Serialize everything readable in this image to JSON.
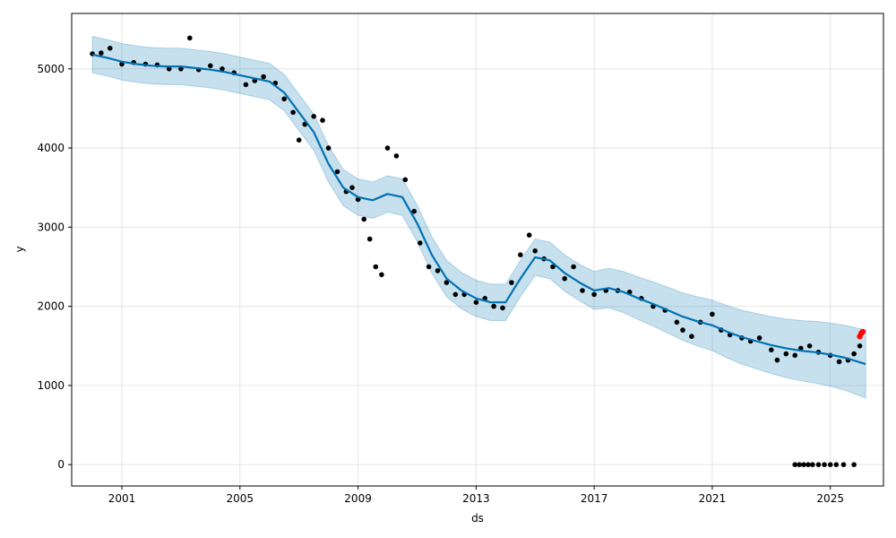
{
  "chart_data": {
    "type": "line",
    "title": "",
    "xlabel": "ds",
    "ylabel": "y",
    "xlim": [
      1999.3,
      2026.8
    ],
    "ylim": [
      -270,
      5700
    ],
    "x_ticks": [
      2001,
      2005,
      2009,
      2013,
      2017,
      2021,
      2025
    ],
    "y_ticks": [
      0,
      1000,
      2000,
      3000,
      4000,
      5000
    ],
    "grid": true,
    "colors": {
      "observed": "#000000",
      "forecast": "#0072B2",
      "interval": "#0072B2",
      "highlight": "#ff0000"
    },
    "series": [
      {
        "kind": "forecast",
        "x": [
          2000.0,
          2000.5,
          2001.0,
          2001.5,
          2002.0,
          2002.5,
          2003.0,
          2003.5,
          2004.0,
          2004.5,
          2005.0,
          2005.5,
          2006.0,
          2006.5,
          2007.0,
          2007.5,
          2008.0,
          2008.5,
          2009.0,
          2009.5,
          2010.0,
          2010.5,
          2011.0,
          2011.5,
          2012.0,
          2012.5,
          2013.0,
          2013.5,
          2014.0,
          2014.5,
          2015.0,
          2015.5,
          2016.0,
          2016.5,
          2017.0,
          2017.5,
          2018.0,
          2018.5,
          2019.0,
          2019.5,
          2020.0,
          2020.5,
          2021.0,
          2021.5,
          2022.0,
          2022.5,
          2023.0,
          2023.5,
          2024.0,
          2024.5,
          2025.0,
          2025.5,
          2026.2
        ],
        "y": [
          5180,
          5140,
          5090,
          5060,
          5040,
          5030,
          5030,
          5010,
          4990,
          4960,
          4920,
          4880,
          4840,
          4700,
          4450,
          4200,
          3800,
          3500,
          3380,
          3340,
          3420,
          3380,
          3050,
          2650,
          2350,
          2200,
          2100,
          2050,
          2050,
          2350,
          2620,
          2580,
          2420,
          2300,
          2200,
          2230,
          2180,
          2100,
          2030,
          1950,
          1870,
          1810,
          1760,
          1680,
          1610,
          1560,
          1510,
          1470,
          1440,
          1420,
          1390,
          1350,
          1270
        ]
      },
      {
        "kind": "interval",
        "x": [
          2000.0,
          2000.5,
          2001.0,
          2001.5,
          2002.0,
          2002.5,
          2003.0,
          2003.5,
          2004.0,
          2004.5,
          2005.0,
          2005.5,
          2006.0,
          2006.5,
          2007.0,
          2007.5,
          2008.0,
          2008.5,
          2009.0,
          2009.5,
          2010.0,
          2010.5,
          2011.0,
          2011.5,
          2012.0,
          2012.5,
          2013.0,
          2013.5,
          2014.0,
          2014.5,
          2015.0,
          2015.5,
          2016.0,
          2016.5,
          2017.0,
          2017.5,
          2018.0,
          2018.5,
          2019.0,
          2019.5,
          2020.0,
          2020.5,
          2021.0,
          2021.5,
          2022.0,
          2022.5,
          2023.0,
          2023.5,
          2024.0,
          2024.5,
          2025.0,
          2025.5,
          2026.2
        ],
        "upper": [
          5410,
          5370,
          5320,
          5290,
          5270,
          5260,
          5260,
          5240,
          5220,
          5190,
          5150,
          5110,
          5070,
          4930,
          4680,
          4430,
          4030,
          3730,
          3610,
          3570,
          3650,
          3610,
          3280,
          2880,
          2580,
          2430,
          2330,
          2280,
          2280,
          2580,
          2850,
          2810,
          2650,
          2530,
          2440,
          2480,
          2440,
          2370,
          2310,
          2240,
          2170,
          2120,
          2080,
          2010,
          1950,
          1910,
          1870,
          1840,
          1820,
          1810,
          1790,
          1760,
          1700
        ],
        "lower": [
          4950,
          4910,
          4860,
          4830,
          4810,
          4800,
          4800,
          4780,
          4760,
          4730,
          4690,
          4650,
          4610,
          4470,
          4220,
          3970,
          3570,
          3270,
          3150,
          3110,
          3190,
          3150,
          2820,
          2420,
          2120,
          1970,
          1870,
          1820,
          1820,
          2120,
          2390,
          2350,
          2190,
          2070,
          1960,
          1980,
          1920,
          1830,
          1750,
          1660,
          1570,
          1500,
          1440,
          1350,
          1270,
          1210,
          1150,
          1100,
          1060,
          1030,
          990,
          940,
          840
        ]
      },
      {
        "kind": "observed",
        "x": [
          2000.0,
          2000.3,
          2000.6,
          2001.0,
          2001.4,
          2001.8,
          2002.2,
          2002.6,
          2003.0,
          2003.3,
          2003.6,
          2004.0,
          2004.4,
          2004.8,
          2005.2,
          2005.5,
          2005.8,
          2006.2,
          2006.5,
          2006.8,
          2007.0,
          2007.2,
          2007.5,
          2007.8,
          2008.0,
          2008.3,
          2008.6,
          2008.8,
          2009.0,
          2009.2,
          2009.4,
          2009.6,
          2009.8,
          2010.0,
          2010.3,
          2010.6,
          2010.9,
          2011.1,
          2011.4,
          2011.7,
          2012.0,
          2012.3,
          2012.6,
          2013.0,
          2013.3,
          2013.6,
          2013.9,
          2014.2,
          2014.5,
          2014.8,
          2015.0,
          2015.3,
          2015.6,
          2016.0,
          2016.3,
          2016.6,
          2017.0,
          2017.4,
          2017.8,
          2018.2,
          2018.6,
          2019.0,
          2019.4,
          2019.8,
          2020.0,
          2020.3,
          2020.6,
          2021.0,
          2021.3,
          2021.6,
          2022.0,
          2022.3,
          2022.6,
          2023.0,
          2023.2,
          2023.5,
          2023.8,
          2024.0,
          2024.3,
          2024.6,
          2025.0,
          2025.3,
          2025.6,
          2025.8,
          2026.0
        ],
        "y": [
          5190,
          5200,
          5260,
          5060,
          5080,
          5060,
          5050,
          5000,
          5000,
          5390,
          4990,
          5040,
          5000,
          4950,
          4800,
          4850,
          4900,
          4820,
          4620,
          4450,
          4100,
          4300,
          4400,
          4350,
          4000,
          3700,
          3450,
          3500,
          3350,
          3100,
          2850,
          2500,
          2400,
          4000,
          3900,
          3600,
          3200,
          2800,
          2500,
          2450,
          2300,
          2150,
          2150,
          2050,
          2100,
          2000,
          1980,
          2300,
          2650,
          2900,
          2700,
          2600,
          2500,
          2350,
          2500,
          2200,
          2150,
          2200,
          2200,
          2180,
          2100,
          2000,
          1950,
          1800,
          1700,
          1620,
          1800,
          1900,
          1700,
          1640,
          1600,
          1560,
          1600,
          1450,
          1320,
          1400,
          1380,
          1470,
          1500,
          1420,
          1380,
          1300,
          1320,
          1400,
          1500
        ]
      },
      {
        "kind": "observed-zero",
        "x": [
          2023.8,
          2023.95,
          2024.1,
          2024.25,
          2024.4,
          2024.6,
          2024.8,
          2025.0,
          2025.2,
          2025.45,
          2025.8
        ],
        "y": [
          0,
          0,
          0,
          0,
          0,
          0,
          0,
          0,
          0,
          0,
          0
        ]
      },
      {
        "kind": "highlight",
        "x": [
          2026.0,
          2026.05,
          2026.1
        ],
        "y": [
          1620,
          1660,
          1680
        ]
      }
    ]
  }
}
